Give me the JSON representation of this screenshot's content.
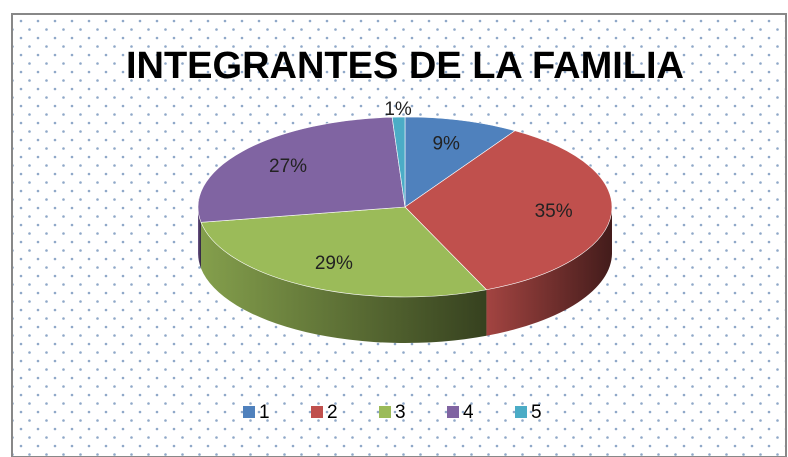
{
  "chart_data": {
    "type": "pie",
    "title": "INTEGRANTES DE LA FAMILIA",
    "categories": [
      "1",
      "2",
      "3",
      "4",
      "5"
    ],
    "values": [
      9,
      35,
      29,
      27,
      1
    ],
    "value_labels": [
      "9%",
      "35%",
      "29%",
      "27%",
      "1%"
    ],
    "colors": [
      "#4f81bd",
      "#c0504d",
      "#9bbb59",
      "#8064a2",
      "#4bacc6"
    ],
    "legend": "bottom"
  }
}
